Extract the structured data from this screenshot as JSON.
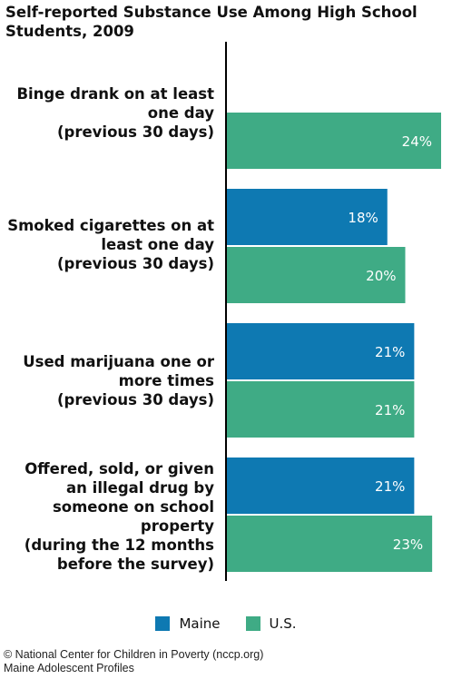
{
  "chart_data": {
    "type": "bar",
    "orientation": "horizontal",
    "title": "Self-reported Substance Use Among High School Students, 2009",
    "categories": [
      [
        "Binge drank on at least",
        "one day",
        "(previous 30 days)"
      ],
      [
        "Smoked cigarettes on at",
        "least one day",
        "(previous 30 days)"
      ],
      [
        "Used marijuana one or",
        "more times",
        "(previous 30 days)"
      ],
      [
        "Offered, sold, or given",
        "an illegal drug by",
        "someone on school",
        "property",
        "(during the 12 months",
        "before the survey)"
      ]
    ],
    "series": [
      {
        "name": "Maine",
        "color": "#0e79b2",
        "values": [
          null,
          18,
          21,
          21
        ],
        "labels": [
          "",
          "18%",
          "21%",
          "21%"
        ]
      },
      {
        "name": "U.S.",
        "color": "#3fab85",
        "values": [
          24,
          20,
          21,
          23
        ],
        "labels": [
          "24%",
          "20%",
          "21%",
          "23%"
        ]
      }
    ],
    "xlim": [
      0,
      24
    ],
    "grid": false,
    "legend_position": "bottom"
  },
  "footer": {
    "line1": "© National Center for Children in Poverty (nccp.org)",
    "line2": "Maine Adolescent Profiles"
  }
}
